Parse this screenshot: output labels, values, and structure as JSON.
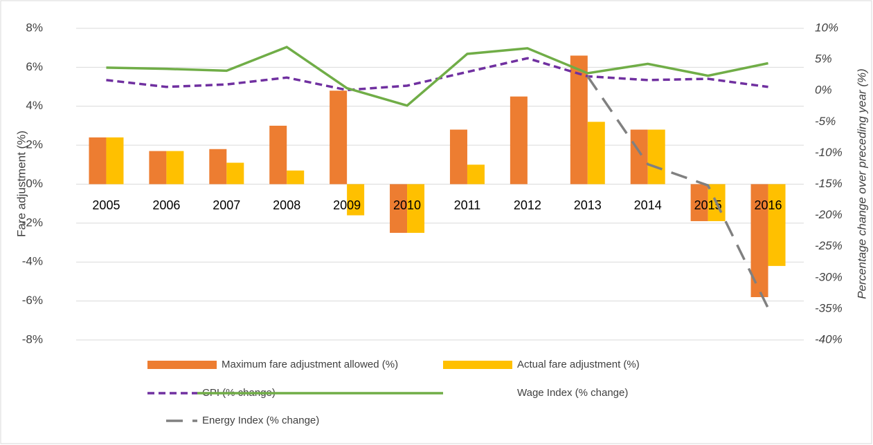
{
  "chart_data": {
    "type": "bar",
    "categories": [
      "2005",
      "2006",
      "2007",
      "2008",
      "2009",
      "2010",
      "2011",
      "2012",
      "2013",
      "2014",
      "2015",
      "2016"
    ],
    "y_label": "Fare adjustment (%)",
    "y2_label": "Percentage change over preceding year (%)",
    "ylim": [
      -8,
      8
    ],
    "yticks": [
      {
        "value": -8,
        "label": "-8%"
      },
      {
        "value": -6,
        "label": "-6%"
      },
      {
        "value": -4,
        "label": "-4%"
      },
      {
        "value": -2,
        "label": "-2%"
      },
      {
        "value": 0,
        "label": "0%"
      },
      {
        "value": 2,
        "label": "2%"
      },
      {
        "value": 4,
        "label": "4%"
      },
      {
        "value": 6,
        "label": "6%"
      },
      {
        "value": 8,
        "label": "8%"
      }
    ],
    "y2lim": [
      -40,
      10
    ],
    "y2ticks": [
      {
        "value": -40,
        "label": "-40%"
      },
      {
        "value": -35,
        "label": "-35%"
      },
      {
        "value": -30,
        "label": "-30%"
      },
      {
        "value": -25,
        "label": "-25%"
      },
      {
        "value": -20,
        "label": "-20%"
      },
      {
        "value": -15,
        "label": "-15%"
      },
      {
        "value": -10,
        "label": "-10%"
      },
      {
        "value": -5,
        "label": "-5%"
      },
      {
        "value": 0,
        "label": "0%"
      },
      {
        "value": 5,
        "label": "5%"
      },
      {
        "value": 10,
        "label": "10%"
      }
    ],
    "grid": true,
    "series": [
      {
        "name": "Maximum fare adjustment allowed (%)",
        "color": "#ED7D31",
        "type": "bar",
        "values": [
          2.4,
          1.7,
          1.8,
          3.0,
          4.8,
          -2.5,
          2.8,
          4.5,
          6.6,
          2.8,
          -1.9,
          -5.8
        ]
      },
      {
        "name": "Actual fare adjustment (%)",
        "color": "#FFC000",
        "type": "bar",
        "values": [
          2.4,
          1.7,
          1.1,
          0.7,
          -1.6,
          -2.5,
          1.0,
          0,
          3.2,
          2.8,
          -1.9,
          -4.2
        ]
      },
      {
        "name": "CPI (% change)",
        "color": "#7030A0",
        "type": "line",
        "dash": "short",
        "axis": "y2",
        "values": [
          1.7,
          0.6,
          1.0,
          2.1,
          0.1,
          0.8,
          3.0,
          5.2,
          2.3,
          1.7,
          1.9,
          0.6
        ]
      },
      {
        "name": "Wage Index (% change)",
        "color": "#70AD47",
        "type": "line",
        "dash": "solid",
        "axis": "y2",
        "values": [
          3.7,
          3.5,
          3.2,
          7.0,
          0.4,
          -2.4,
          5.9,
          6.8,
          2.8,
          4.3,
          2.4,
          4.4
        ]
      },
      {
        "name": "Energy Index (% change)",
        "color": "#808080",
        "type": "line",
        "dash": "long",
        "axis": "y2",
        "values": [
          null,
          null,
          null,
          null,
          null,
          null,
          null,
          null,
          2.3,
          -11.8,
          -15.2,
          -34.9
        ]
      }
    ]
  }
}
